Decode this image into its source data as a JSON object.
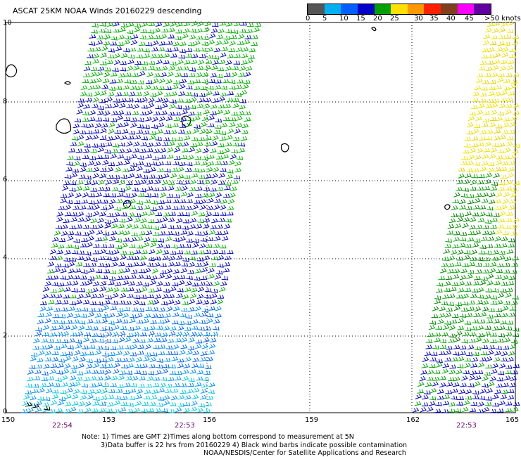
{
  "title": "ASCAT 25KM NOAA Winds 20160229 descending",
  "legend": {
    "labels": [
      "0",
      "5",
      "10",
      "15",
      "20",
      "25",
      "30",
      "35",
      "40",
      "45",
      ">50 knots"
    ],
    "colors": [
      "#555555",
      "#00b0f0",
      "#0060ff",
      "#0000c8",
      "#00a000",
      "#ffe000",
      "#ff8000",
      "#ff2000",
      "#804020",
      "#ff00ff",
      "#6000a0"
    ]
  },
  "axes": {
    "y_ticks": [
      "10",
      "8",
      "6",
      "4",
      "2",
      "0"
    ],
    "x_ticks": [
      "150",
      "153",
      "156",
      "159",
      "162",
      "165"
    ],
    "time_ticks": [
      "22:54",
      "22:53",
      "22:53"
    ]
  },
  "notes": [
    "Note: 1) Times are GMT 2)Times along bottom correspond to measurement at 5N",
    "3)Data buffer is 22 hrs from 20160229 4) Black wind barbs indicate possible contamination",
    "NOAA/NESDIS/Center for Satellite Applications and Research"
  ],
  "colors": {
    "grid": "#000000",
    "time_label": "#6b006b"
  }
}
